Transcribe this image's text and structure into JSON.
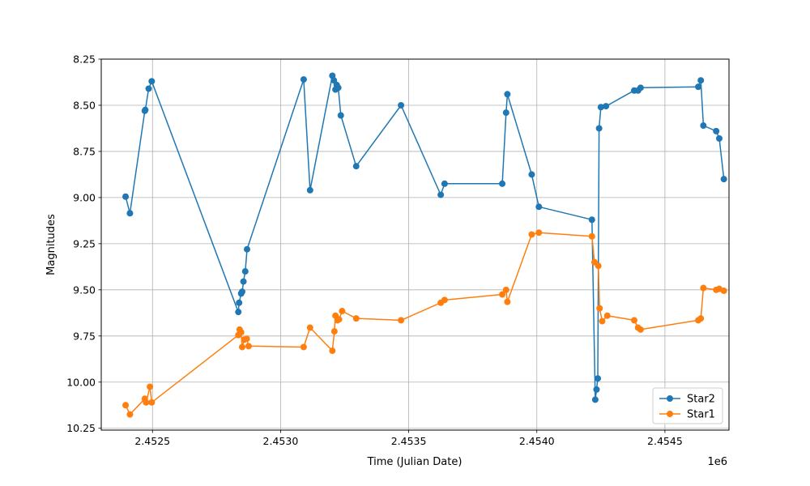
{
  "chart_data": {
    "type": "line",
    "xlabel": "Time (Julian Date)",
    "ylabel": "Magnitudes",
    "x_offset_label": "1e6",
    "xlim": [
      2452300,
      2454750
    ],
    "ylim": [
      10.26,
      8.25
    ],
    "y_inverted": true,
    "grid": true,
    "legend_position": "lower-right",
    "x_ticks": [
      2452500,
      2453000,
      2453500,
      2454000,
      2454500
    ],
    "x_tick_labels": [
      "2.4525",
      "2.4530",
      "2.4535",
      "2.4540",
      "2.4545"
    ],
    "y_ticks": [
      8.25,
      8.5,
      8.75,
      9.0,
      9.25,
      9.5,
      9.75,
      10.0,
      10.25
    ],
    "y_tick_labels": [
      "8.25",
      "8.50",
      "8.75",
      "9.00",
      "9.25",
      "9.50",
      "9.75",
      "10.00",
      "10.25"
    ],
    "series": [
      {
        "name": "Star2",
        "color": "#1f77b4",
        "points": [
          [
            2452395,
            8.995
          ],
          [
            2452412,
            9.085
          ],
          [
            2452470,
            8.53
          ],
          [
            2452472,
            8.525
          ],
          [
            2452485,
            8.41
          ],
          [
            2452497,
            8.37
          ],
          [
            2452835,
            9.62
          ],
          [
            2452838,
            9.57
          ],
          [
            2452846,
            9.52
          ],
          [
            2452850,
            9.51
          ],
          [
            2452855,
            9.455
          ],
          [
            2452862,
            9.4
          ],
          [
            2452869,
            9.28
          ],
          [
            2453090,
            8.36
          ],
          [
            2453115,
            8.96
          ],
          [
            2453202,
            8.34
          ],
          [
            2453208,
            8.365
          ],
          [
            2453214,
            8.415
          ],
          [
            2453219,
            8.39
          ],
          [
            2453225,
            8.405
          ],
          [
            2453235,
            8.555
          ],
          [
            2453295,
            8.83
          ],
          [
            2453470,
            8.5
          ],
          [
            2453625,
            8.985
          ],
          [
            2453640,
            8.925
          ],
          [
            2453865,
            8.925
          ],
          [
            2453880,
            8.54
          ],
          [
            2453885,
            8.44
          ],
          [
            2453980,
            8.875
          ],
          [
            2454008,
            9.05
          ],
          [
            2454215,
            9.12
          ],
          [
            2454228,
            10.095
          ],
          [
            2454233,
            10.04
          ],
          [
            2454238,
            9.98
          ],
          [
            2454243,
            8.625
          ],
          [
            2454250,
            8.51
          ],
          [
            2454270,
            8.505
          ],
          [
            2454380,
            8.42
          ],
          [
            2454395,
            8.42
          ],
          [
            2454405,
            8.405
          ],
          [
            2454630,
            8.4
          ],
          [
            2454640,
            8.365
          ],
          [
            2454650,
            8.61
          ],
          [
            2454700,
            8.64
          ],
          [
            2454712,
            8.68
          ],
          [
            2454730,
            8.9
          ]
        ]
      },
      {
        "name": "Star1",
        "color": "#ff7f0e",
        "points": [
          [
            2452395,
            10.125
          ],
          [
            2452412,
            10.175
          ],
          [
            2452470,
            10.09
          ],
          [
            2452475,
            10.11
          ],
          [
            2452490,
            10.025
          ],
          [
            2452497,
            10.11
          ],
          [
            2452835,
            9.745
          ],
          [
            2452840,
            9.715
          ],
          [
            2452846,
            9.73
          ],
          [
            2452850,
            9.81
          ],
          [
            2452858,
            9.77
          ],
          [
            2452868,
            9.765
          ],
          [
            2452875,
            9.805
          ],
          [
            2453090,
            9.81
          ],
          [
            2453115,
            9.705
          ],
          [
            2453202,
            9.83
          ],
          [
            2453210,
            9.725
          ],
          [
            2453214,
            9.64
          ],
          [
            2453222,
            9.665
          ],
          [
            2453228,
            9.66
          ],
          [
            2453240,
            9.615
          ],
          [
            2453295,
            9.655
          ],
          [
            2453470,
            9.665
          ],
          [
            2453625,
            9.57
          ],
          [
            2453640,
            9.555
          ],
          [
            2453865,
            9.525
          ],
          [
            2453880,
            9.5
          ],
          [
            2453885,
            9.565
          ],
          [
            2453980,
            9.2
          ],
          [
            2454008,
            9.19
          ],
          [
            2454215,
            9.21
          ],
          [
            2454225,
            9.35
          ],
          [
            2454240,
            9.37
          ],
          [
            2454245,
            9.6
          ],
          [
            2454255,
            9.67
          ],
          [
            2454275,
            9.64
          ],
          [
            2454380,
            9.665
          ],
          [
            2454395,
            9.705
          ],
          [
            2454405,
            9.715
          ],
          [
            2454630,
            9.665
          ],
          [
            2454640,
            9.655
          ],
          [
            2454650,
            9.49
          ],
          [
            2454700,
            9.5
          ],
          [
            2454712,
            9.495
          ],
          [
            2454730,
            9.505
          ]
        ]
      }
    ]
  }
}
